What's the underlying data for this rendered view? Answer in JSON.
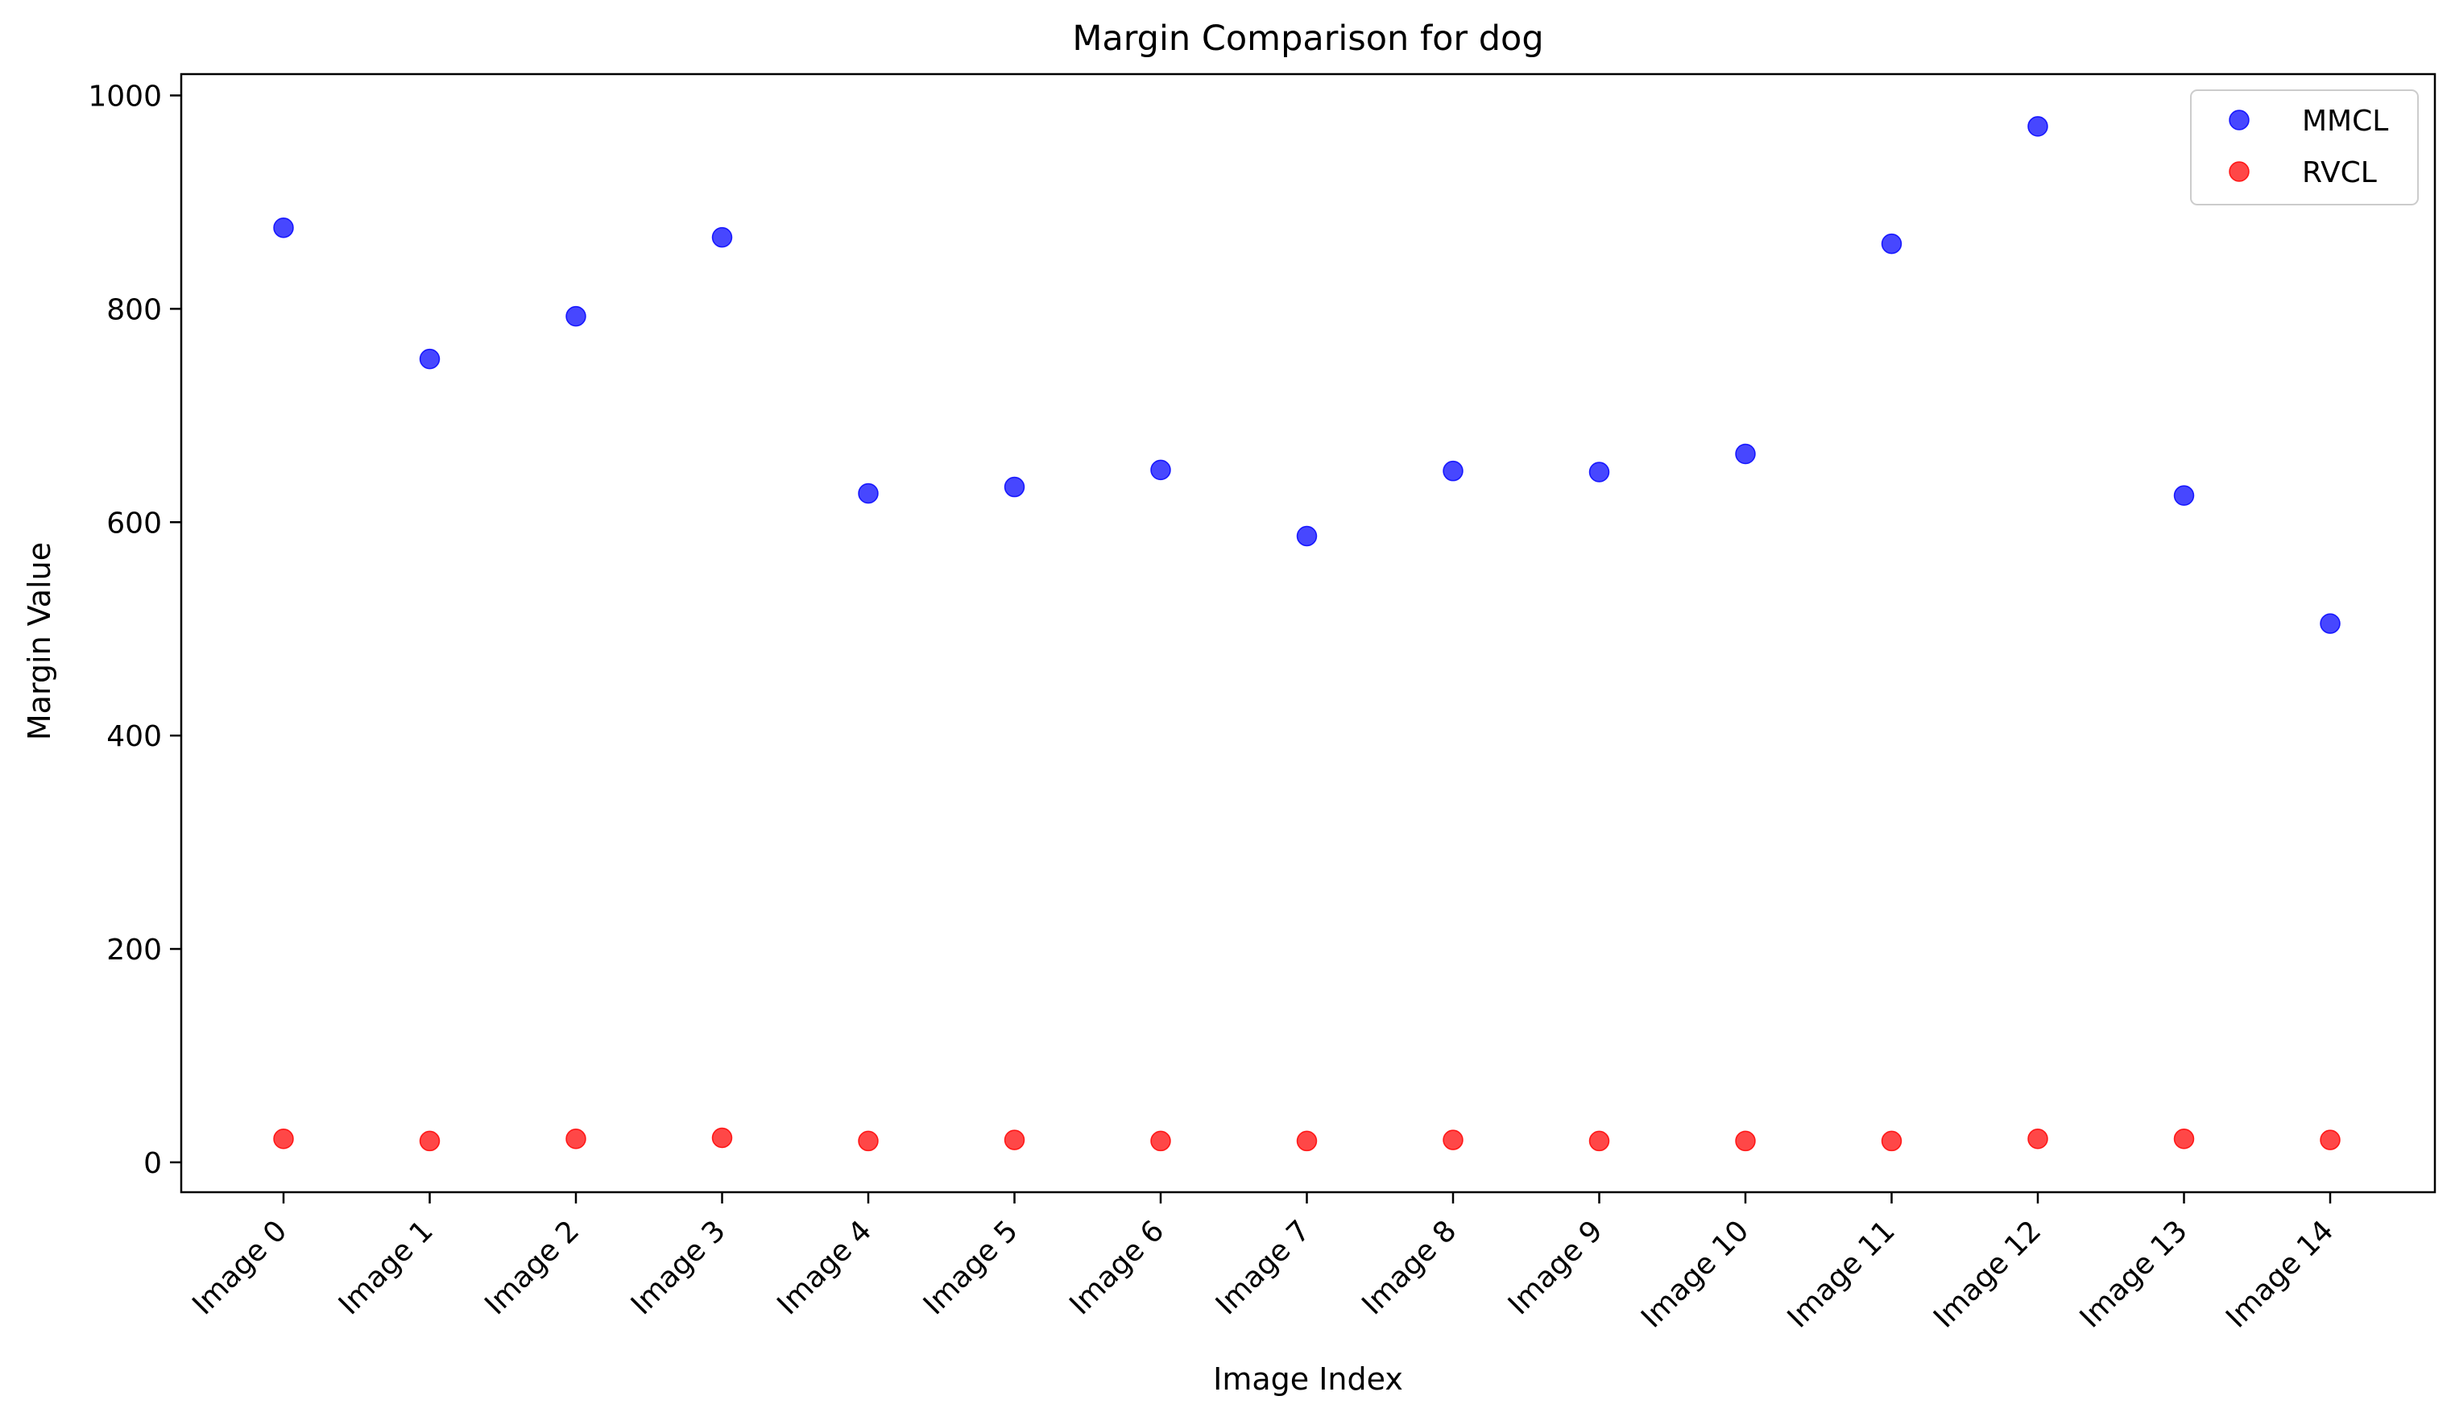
{
  "chart_data": {
    "type": "scatter",
    "title": "Margin Comparison for dog",
    "xlabel": "Image Index",
    "ylabel": "Margin Value",
    "categories": [
      "Image 0",
      "Image 1",
      "Image 2",
      "Image 3",
      "Image 4",
      "Image 5",
      "Image 6",
      "Image 7",
      "Image 8",
      "Image 9",
      "Image 10",
      "Image 11",
      "Image 12",
      "Image 13",
      "Image 14"
    ],
    "ylim": [
      -28,
      1020
    ],
    "yticks": [
      0,
      200,
      400,
      600,
      800,
      1000
    ],
    "grid": false,
    "legend_position": "top-right",
    "series": [
      {
        "name": "MMCL",
        "color": "#0000ff",
        "values": [
          876,
          753,
          793,
          867,
          627,
          633,
          649,
          587,
          648,
          647,
          664,
          861,
          971,
          625,
          505
        ]
      },
      {
        "name": "RVCL",
        "color": "#ff0000",
        "values": [
          22,
          20,
          22,
          23,
          20,
          21,
          20,
          20,
          21,
          20,
          20,
          20,
          22,
          22,
          21
        ]
      }
    ]
  }
}
